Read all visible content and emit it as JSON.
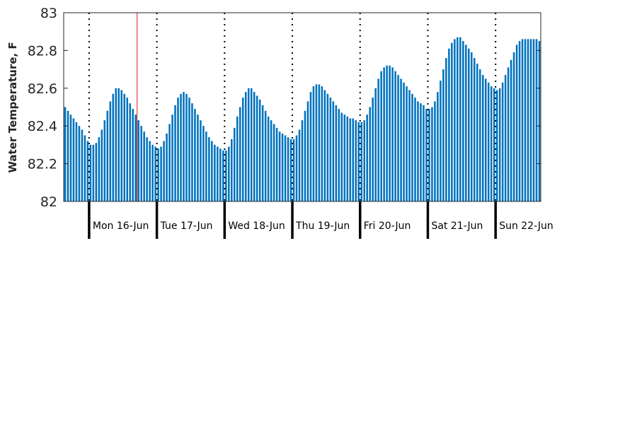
{
  "chart_data": {
    "type": "bar",
    "title": "",
    "xlabel": "",
    "ylabel": "Water Temperature, F",
    "ylim": [
      82,
      83
    ],
    "yticks": [
      "82",
      "82.2",
      "82.4",
      "82.6",
      "82.8",
      "83"
    ],
    "bar_color": "#0072BD",
    "marker_color": "#E41A1C",
    "grid": false,
    "day_labels": [
      "Mon 16-Jun",
      "Tue 17-Jun",
      "Wed 18-Jun",
      "Thu 19-Jun",
      "Fri 20-Jun",
      "Sat 21-Jun",
      "Sun 22-Jun"
    ],
    "marker_hour": 17,
    "hours_per_bar": 1,
    "values": [
      82.5,
      82.48,
      82.46,
      82.44,
      82.42,
      82.4,
      82.38,
      82.35,
      82.32,
      82.3,
      82.3,
      82.31,
      82.34,
      82.38,
      82.43,
      82.48,
      82.53,
      82.57,
      82.6,
      82.6,
      82.59,
      82.57,
      82.55,
      82.52,
      82.49,
      82.46,
      82.43,
      82.4,
      82.37,
      82.34,
      82.32,
      82.3,
      82.29,
      82.28,
      82.29,
      82.32,
      82.36,
      82.41,
      82.46,
      82.51,
      82.55,
      82.57,
      82.58,
      82.57,
      82.55,
      82.52,
      82.49,
      82.46,
      82.43,
      82.4,
      82.37,
      82.34,
      82.32,
      82.3,
      82.29,
      82.28,
      82.27,
      82.27,
      82.29,
      82.33,
      82.39,
      82.45,
      82.5,
      82.55,
      82.58,
      82.6,
      82.6,
      82.58,
      82.56,
      82.54,
      82.51,
      82.48,
      82.45,
      82.43,
      82.41,
      82.39,
      82.37,
      82.36,
      82.35,
      82.34,
      82.33,
      82.33,
      82.35,
      82.38,
      82.43,
      82.48,
      82.53,
      82.58,
      82.61,
      82.62,
      82.62,
      82.61,
      82.59,
      82.57,
      82.55,
      82.53,
      82.51,
      82.49,
      82.47,
      82.46,
      82.45,
      82.44,
      82.44,
      82.43,
      82.42,
      82.42,
      82.43,
      82.46,
      82.5,
      82.55,
      82.6,
      82.65,
      82.69,
      82.71,
      82.72,
      82.72,
      82.71,
      82.69,
      82.67,
      82.65,
      82.63,
      82.61,
      82.59,
      82.57,
      82.55,
      82.53,
      82.52,
      82.51,
      82.49,
      82.49,
      82.5,
      82.53,
      82.58,
      82.64,
      82.7,
      82.76,
      82.81,
      82.84,
      82.86,
      82.87,
      82.87,
      82.85,
      82.83,
      82.81,
      82.79,
      82.76,
      82.73,
      82.7,
      82.67,
      82.65,
      82.63,
      82.61,
      82.6,
      82.59,
      82.6,
      82.63,
      82.67,
      82.71,
      82.75,
      82.79,
      82.83,
      82.85,
      82.86,
      82.86,
      82.86,
      82.86,
      82.86,
      82.86,
      82.85
    ]
  }
}
